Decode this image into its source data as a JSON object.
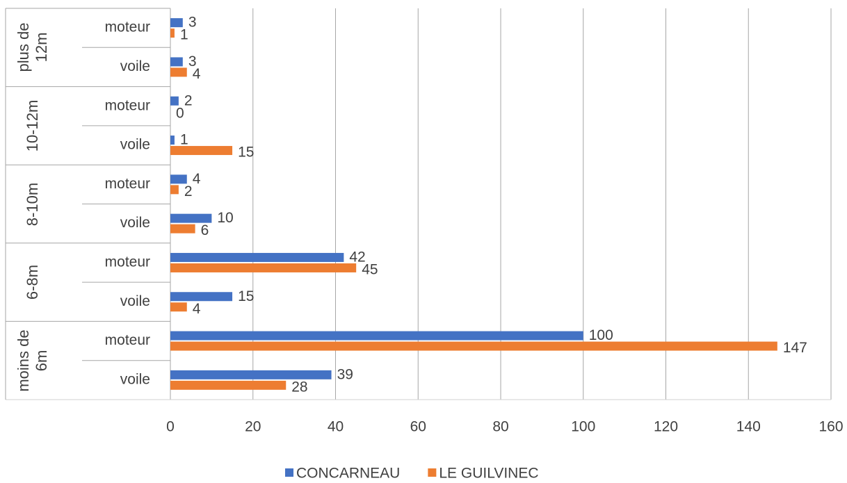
{
  "chart_data": {
    "type": "bar",
    "orientation": "horizontal",
    "groups": [
      {
        "name": "plus de 12m",
        "categories": [
          "moteur",
          "voile"
        ]
      },
      {
        "name": "10-12m",
        "categories": [
          "moteur",
          "voile"
        ]
      },
      {
        "name": "8-10m",
        "categories": [
          "moteur",
          "voile"
        ]
      },
      {
        "name": "6-8m",
        "categories": [
          "moteur",
          "voile"
        ]
      },
      {
        "name": "moins de 6m",
        "categories": [
          "moteur",
          "voile"
        ]
      }
    ],
    "series": [
      {
        "name": "CONCARNEAU",
        "color": "#4472c4",
        "values": [
          3,
          3,
          2,
          1,
          4,
          10,
          42,
          15,
          100,
          39
        ]
      },
      {
        "name": "LE GUILVINEC",
        "color": "#ed7d31",
        "values": [
          1,
          4,
          0,
          15,
          2,
          6,
          45,
          4,
          147,
          28
        ]
      }
    ],
    "xlim": [
      0,
      160
    ],
    "xticks": [
      0,
      20,
      40,
      60,
      80,
      100,
      120,
      140,
      160
    ],
    "grid": true,
    "legend": "bottom"
  }
}
